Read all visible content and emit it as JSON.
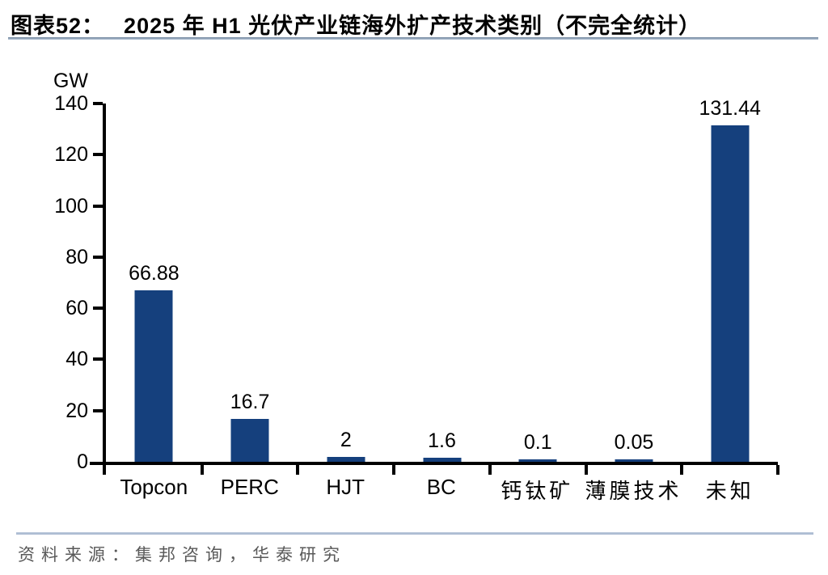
{
  "header": {
    "figure_label": "图表52：",
    "title": "2025 年 H1 光伏产业链海外扩产技术类别（不完全统计）"
  },
  "chart_data": {
    "type": "bar",
    "title": "2025 年 H1 光伏产业链海外扩产技术类别（不完全统计）",
    "ylabel": "GW",
    "xlabel": "",
    "categories": [
      "Topcon",
      "PERC",
      "HJT",
      "BC",
      "钙钛矿",
      "薄膜技术",
      "未知"
    ],
    "values": [
      66.88,
      16.7,
      2,
      1.6,
      0.1,
      0.05,
      131.44
    ],
    "data_labels": [
      "66.88",
      "16.7",
      "2",
      "1.6",
      "0.1",
      "0.05",
      "131.44"
    ],
    "ylim": [
      0,
      140
    ],
    "ytick_step": 20,
    "grid": false,
    "legend": "none",
    "bar_color": "#15407D"
  },
  "footer": {
    "source": "资料来源：集邦咨询，华泰研究"
  },
  "colors": {
    "bar": "#15407D",
    "axis": "#000000",
    "title_rule": "#8CA0B8",
    "footer_rule": "#A9B8D0",
    "source_text": "#595959"
  }
}
